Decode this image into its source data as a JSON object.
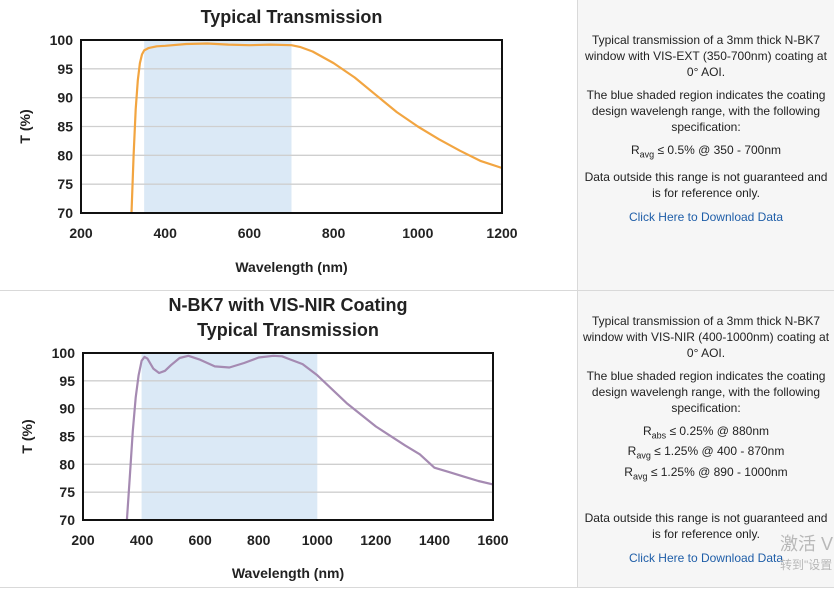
{
  "charts": [
    {
      "title_lines": [
        "",
        "Typical Transmission"
      ],
      "xlabel": "Wavelength (nm)",
      "ylabel": "T (%)",
      "description": [
        "Typical transmission of a 3mm thick N-BK7 window with VIS-EXT (350-700nm) coating at 0° AOI.",
        "The blue shaded region indicates the coating design wavelengh range, with the following specification:"
      ],
      "specs": [
        {
          "sym": "R",
          "sub": "avg",
          "text": "≤ 0.5% @ 350 - 700nm"
        }
      ],
      "disclaimer": "Data outside this range is not guaranteed and is for reference only.",
      "download_label": "Click Here to Download Data"
    },
    {
      "title_lines": [
        "N-BK7 with VIS-NIR Coating",
        "Typical Transmission"
      ],
      "xlabel": "Wavelength (nm)",
      "ylabel": "T (%)",
      "description": [
        "Typical transmission of a 3mm thick N-BK7 window with VIS-NIR (400-1000nm) coating at 0° AOI.",
        "The blue shaded region indicates the coating design wavelengh range, with the following specification:"
      ],
      "specs": [
        {
          "sym": "R",
          "sub": "abs",
          "text": "≤ 0.25% @ 880nm"
        },
        {
          "sym": "R",
          "sub": "avg",
          "text": "≤ 1.25% @ 400 - 870nm"
        },
        {
          "sym": "R",
          "sub": "avg",
          "text": "≤ 1.25% @ 890 - 1000nm"
        }
      ],
      "disclaimer": "Data outside this range is not guaranteed and is for reference only.",
      "download_label": "Click Here to Download Data"
    }
  ],
  "watermark": {
    "line1": "激活 V",
    "line2": "转到\"设置"
  },
  "chart_data": [
    {
      "type": "line",
      "xlabel": "Wavelength (nm)",
      "ylabel": "T (%)",
      "xlim": [
        200,
        1200
      ],
      "ylim": [
        70,
        100
      ],
      "xticks": [
        200,
        400,
        600,
        800,
        1000,
        1200
      ],
      "yticks": [
        70,
        75,
        80,
        85,
        90,
        95,
        100
      ],
      "shaded_range": [
        350,
        700
      ],
      "grid": true,
      "series": [
        {
          "color": "#f2a541",
          "x": [
            320,
            325,
            330,
            335,
            340,
            345,
            350,
            360,
            380,
            400,
            450,
            500,
            550,
            600,
            650,
            700,
            720,
            750,
            800,
            850,
            900,
            950,
            1000,
            1050,
            1100,
            1150,
            1200
          ],
          "y": [
            70,
            80,
            88,
            93,
            96,
            97.5,
            98.2,
            98.6,
            98.9,
            99.0,
            99.3,
            99.4,
            99.2,
            99.1,
            99.2,
            99.1,
            98.8,
            98.0,
            96.0,
            93.5,
            90.5,
            87.5,
            85.0,
            82.8,
            80.8,
            79.0,
            77.8
          ]
        }
      ]
    },
    {
      "type": "line",
      "title": "N-BK7 with VIS-NIR Coating Typical Transmission",
      "xlabel": "Wavelength (nm)",
      "ylabel": "T (%)",
      "xlim": [
        200,
        1600
      ],
      "ylim": [
        70,
        100
      ],
      "xticks": [
        200,
        400,
        600,
        800,
        1000,
        1200,
        1400,
        1600
      ],
      "yticks": [
        70,
        75,
        80,
        85,
        90,
        95,
        100
      ],
      "shaded_range": [
        400,
        1000
      ],
      "grid": true,
      "series": [
        {
          "color": "#a58ab2",
          "x": [
            350,
            360,
            370,
            380,
            390,
            400,
            410,
            420,
            440,
            460,
            480,
            500,
            530,
            560,
            600,
            650,
            700,
            750,
            800,
            850,
            880,
            900,
            950,
            1000,
            1100,
            1200,
            1300,
            1350,
            1400,
            1450,
            1500,
            1550,
            1600
          ],
          "y": [
            70,
            78,
            86,
            92,
            96,
            98.6,
            99.3,
            99.0,
            97.2,
            96.4,
            96.8,
            97.8,
            99.1,
            99.5,
            98.8,
            97.6,
            97.4,
            98.2,
            99.2,
            99.5,
            99.4,
            99.0,
            98.0,
            96.0,
            91.0,
            86.8,
            83.4,
            81.8,
            79.4,
            78.6,
            77.8,
            77.0,
            76.4
          ]
        }
      ]
    }
  ]
}
